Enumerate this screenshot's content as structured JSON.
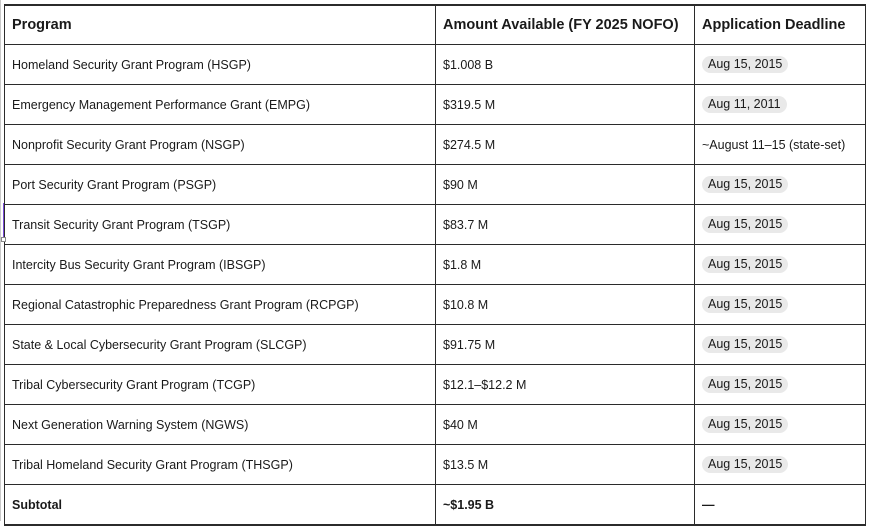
{
  "table": {
    "headers": {
      "program": "Program",
      "amount": "Amount Available (FY 2025 NOFO)",
      "deadline": "Application Deadline"
    },
    "rows": [
      {
        "program": "Homeland Security Grant Program (HSGP)",
        "amount": "$1.008 B",
        "deadline": "Aug 15, 2015",
        "chip": true
      },
      {
        "program": "Emergency Management Performance Grant (EMPG)",
        "amount": "$319.5 M",
        "deadline": "Aug 11, 2011",
        "chip": true
      },
      {
        "program": "Nonprofit Security Grant Program (NSGP)",
        "amount": "$274.5 M",
        "deadline": "~August 11–15 (state-set)",
        "chip": false
      },
      {
        "program": "Port Security Grant Program (PSGP)",
        "amount": "$90 M",
        "deadline": "Aug 15, 2015",
        "chip": true
      },
      {
        "program": "Transit Security Grant Program (TSGP)",
        "amount": "$83.7 M",
        "deadline": "Aug 15, 2015",
        "chip": true
      },
      {
        "program": "Intercity Bus Security Grant Program (IBSGP)",
        "amount": "$1.8 M",
        "deadline": "Aug 15, 2015",
        "chip": true
      },
      {
        "program": "Regional Catastrophic Preparedness Grant Program (RCPGP)",
        "amount": "$10.8 M",
        "deadline": "Aug 15, 2015",
        "chip": true
      },
      {
        "program": "State & Local Cybersecurity Grant Program (SLCGP)",
        "amount": "$91.75 M",
        "deadline": "Aug 15, 2015",
        "chip": true
      },
      {
        "program": "Tribal Cybersecurity Grant Program (TCGP)",
        "amount": "$12.1–$12.2 M",
        "deadline": "Aug 15, 2015",
        "chip": true
      },
      {
        "program": "Next Generation Warning System (NGWS)",
        "amount": "$40 M",
        "deadline": "Aug 15, 2015",
        "chip": true
      },
      {
        "program": "Tribal Homeland Security Grant Program (THSGP)",
        "amount": "$13.5 M",
        "deadline": "Aug 15, 2015",
        "chip": true
      }
    ],
    "subtotal": {
      "label": "Subtotal",
      "amount": "~$1.95 B",
      "deadline": "—"
    }
  },
  "colors": {
    "border": "#2b2b2b",
    "chip_background": "#e9e9e9",
    "cursor": "#7a4dd8"
  }
}
